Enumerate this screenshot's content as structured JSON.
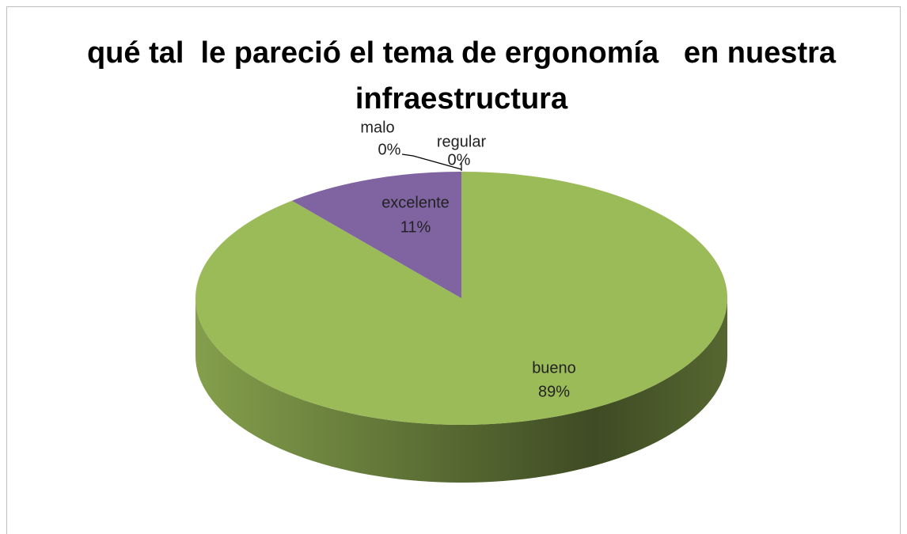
{
  "chart_data": {
    "type": "pie",
    "title": "qué tal  le pareció el tema de ergonomía   en nuestra infraestructura",
    "categories": [
      "regular",
      "bueno",
      "excelente",
      "malo"
    ],
    "values": [
      0,
      89,
      11,
      0
    ],
    "value_labels": [
      "0%",
      "89%",
      "11%",
      "0%"
    ],
    "colors": [
      "#c0504d",
      "#9bbb59",
      "#8064a2",
      "#4f81bd"
    ]
  }
}
